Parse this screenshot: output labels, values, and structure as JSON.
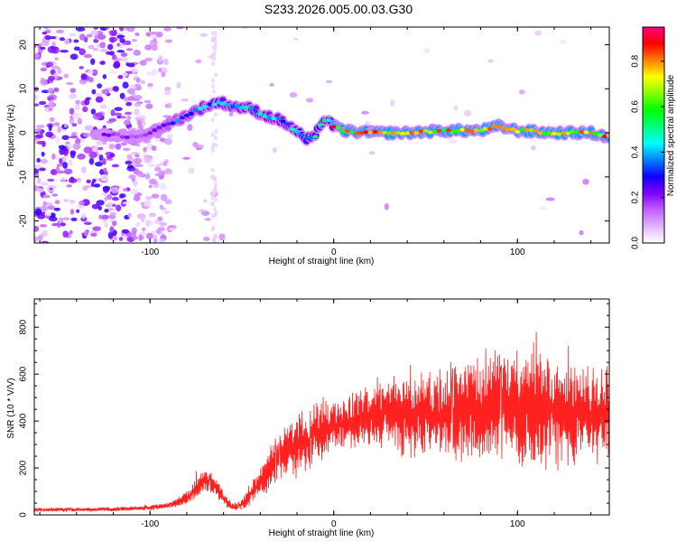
{
  "figure": {
    "title": "S233.2026.005.00.03.G30"
  },
  "chart_data": [
    {
      "type": "heatmap",
      "title": "",
      "xlabel": "Height of straight line (km)",
      "ylabel": "Frequency (Hz)",
      "xlim": [
        -163,
        150
      ],
      "ylim": [
        -25,
        24
      ],
      "xticks": [
        -100,
        0,
        100
      ],
      "yticks": [
        -20,
        -10,
        0,
        10,
        20
      ],
      "xtick_labels": [
        "-100",
        "0",
        "100"
      ],
      "ytick_labels": [
        "-20",
        "-10",
        "0",
        "10",
        "20"
      ],
      "ridge": {
        "description_points_x": [
          -163,
          -140,
          -120,
          -110,
          -100,
          -90,
          -80,
          -70,
          -62,
          -55,
          -45,
          -38,
          -30,
          -22,
          -15,
          -10,
          -7,
          -3,
          0,
          5,
          20,
          40,
          60,
          80,
          90,
          100,
          120,
          140,
          150
        ],
        "frequency_hz": [
          0,
          0,
          -0.5,
          -1,
          0,
          2,
          4,
          6,
          7,
          6,
          5.5,
          4,
          3,
          1,
          -1.5,
          -1,
          2.5,
          3,
          1.5,
          0.5,
          0,
          0,
          0.5,
          0.5,
          1.5,
          0.5,
          0,
          0,
          -1
        ]
      },
      "colorbar": {
        "label": "Normalized spectral amplitude",
        "range": [
          0,
          0.95
        ],
        "ticks": [
          0.0,
          0.2,
          0.4,
          0.6,
          0.8
        ],
        "tick_labels": [
          "0.0",
          "0.2",
          "0.4",
          "0.6",
          "0.8"
        ],
        "colors": [
          "#ffffff",
          "#e2b5ff",
          "#c060ff",
          "#7f00ff",
          "#1000ff",
          "#0080ff",
          "#00ffff",
          "#00ff80",
          "#00ff00",
          "#80ff00",
          "#ffff00",
          "#ff8000",
          "#ff0000",
          "#ff0080"
        ]
      }
    },
    {
      "type": "line",
      "title": "",
      "xlabel": "Height of straight line (km)",
      "ylabel": "SNR (10 * V/V)",
      "xlim": [
        -163,
        150
      ],
      "ylim": [
        0,
        920
      ],
      "xticks": [
        -100,
        0,
        100
      ],
      "yticks": [
        0,
        200,
        400,
        600,
        800
      ],
      "xtick_labels": [
        "-100",
        "0",
        "100"
      ],
      "ytick_labels": [
        "0",
        "200",
        "400",
        "600",
        "800"
      ],
      "series": [
        {
          "name": "SNR",
          "color": "#ff2020",
          "envelope_x": [
            -163,
            -140,
            -120,
            -100,
            -90,
            -80,
            -75,
            -70,
            -65,
            -60,
            -55,
            -50,
            -45,
            -40,
            -35,
            -30,
            -25,
            -20,
            -15,
            -10,
            -5,
            0,
            10,
            20,
            30,
            40,
            50,
            60,
            70,
            80,
            90,
            100,
            110,
            120,
            130,
            140,
            150
          ],
          "envelope_y": [
            22,
            22,
            24,
            30,
            40,
            70,
            110,
            150,
            130,
            70,
            30,
            45,
            90,
            130,
            190,
            240,
            270,
            290,
            320,
            350,
            380,
            380,
            400,
            420,
            430,
            430,
            430,
            430,
            440,
            450,
            460,
            460,
            450,
            440,
            430,
            430,
            420
          ],
          "noise_amplitude_y": [
            8,
            8,
            8,
            10,
            12,
            25,
            35,
            40,
            35,
            25,
            15,
            20,
            45,
            60,
            80,
            90,
            100,
            110,
            110,
            110,
            110,
            100,
            100,
            110,
            130,
            150,
            160,
            170,
            190,
            200,
            220,
            230,
            230,
            220,
            200,
            190,
            180
          ]
        }
      ]
    }
  ]
}
